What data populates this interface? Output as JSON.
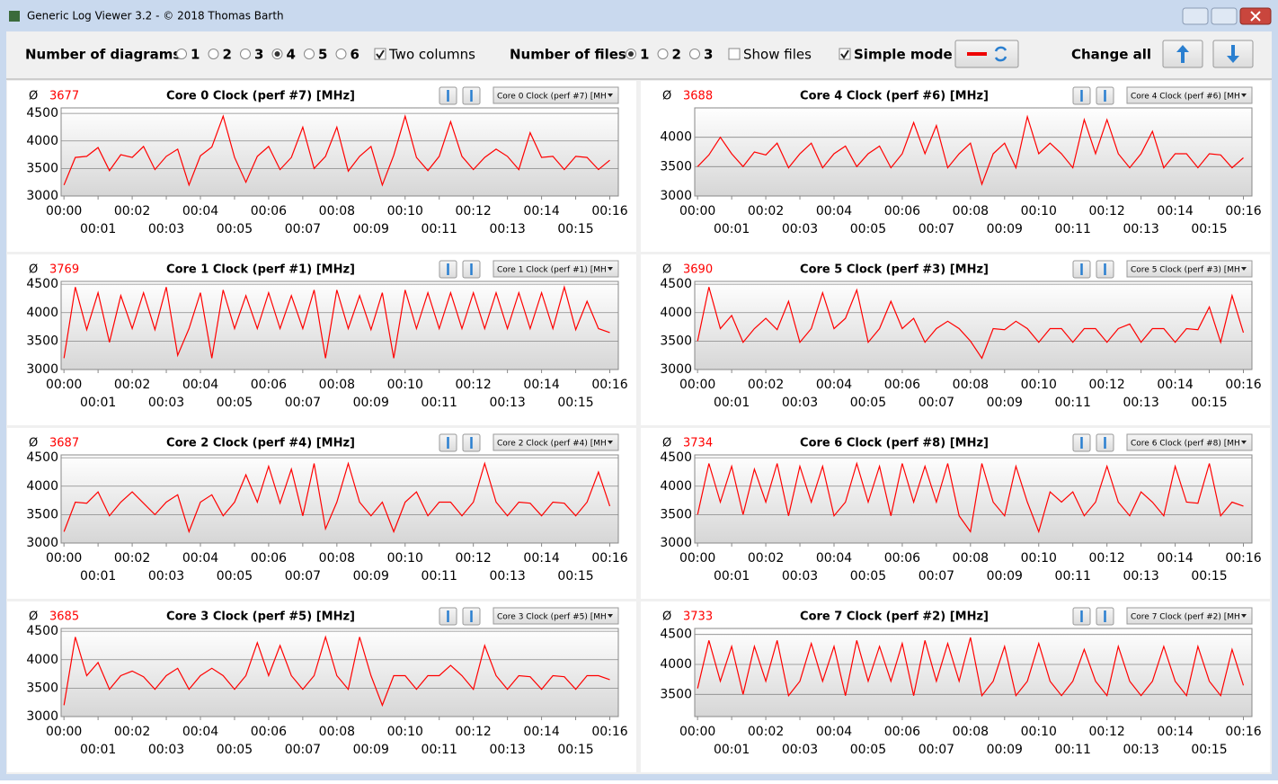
{
  "window": {
    "title": "Generic Log Viewer 3.2 - © 2018 Thomas Barth"
  },
  "toolbar": {
    "diagrams_label": "Number of diagrams",
    "diagram_options": [
      "1",
      "2",
      "3",
      "4",
      "5",
      "6"
    ],
    "two_columns": "Two columns",
    "files_label": "Number of files",
    "file_options": [
      "1",
      "2",
      "3"
    ],
    "show_files": "Show files",
    "simple_mode": "Simple mode",
    "change_all": "Change all"
  },
  "time_axis": {
    "x": [
      0,
      20,
      40,
      60,
      80,
      100,
      120,
      140,
      160,
      180,
      200,
      220,
      240,
      260,
      280,
      300,
      320,
      340,
      360,
      380,
      400,
      420,
      440,
      460,
      480,
      500,
      520,
      540,
      560,
      580,
      600,
      620,
      640,
      660,
      680,
      700,
      720,
      740,
      760,
      780,
      800,
      820,
      840,
      860,
      880,
      900,
      920,
      940,
      960
    ],
    "xlim": [
      -5,
      975
    ],
    "xticks": [
      {
        "value": 0,
        "label": "00:00"
      },
      {
        "value": 60,
        "label": "00:01"
      },
      {
        "value": 120,
        "label": "00:02"
      },
      {
        "value": 180,
        "label": "00:03"
      },
      {
        "value": 240,
        "label": "00:04"
      },
      {
        "value": 300,
        "label": "00:05"
      },
      {
        "value": 360,
        "label": "00:06"
      },
      {
        "value": 420,
        "label": "00:07"
      },
      {
        "value": 480,
        "label": "00:08"
      },
      {
        "value": 540,
        "label": "00:09"
      },
      {
        "value": 600,
        "label": "00:10"
      },
      {
        "value": 660,
        "label": "00:11"
      },
      {
        "value": 720,
        "label": "00:12"
      },
      {
        "value": 780,
        "label": "00:13"
      },
      {
        "value": 840,
        "label": "00:14"
      },
      {
        "value": 900,
        "label": "00:15"
      },
      {
        "value": 960,
        "label": "00:16"
      }
    ]
  },
  "chart_data": [
    {
      "type": "line",
      "avg_label": "Ø",
      "avg": 3677,
      "title": "Core 0 Clock (perf #7) [MHz]",
      "selector": "Core 0 Clock (perf #7) [MH",
      "color": "#ff0000",
      "ylim": [
        3000,
        4600
      ],
      "yticks": [
        3000,
        3500,
        4000,
        4500
      ],
      "values": [
        3200,
        3700,
        3720,
        3880,
        3460,
        3750,
        3700,
        3900,
        3480,
        3720,
        3850,
        3200,
        3730,
        3890,
        4450,
        3700,
        3250,
        3720,
        3900,
        3480,
        3700,
        4250,
        3500,
        3720,
        4250,
        3450,
        3720,
        3900,
        3200,
        3740,
        4450,
        3700,
        3460,
        3720,
        4350,
        3720,
        3480,
        3700,
        3850,
        3720,
        3480,
        4150,
        3700,
        3720,
        3480,
        3720,
        3700,
        3480,
        3650
      ]
    },
    {
      "type": "line",
      "avg_label": "Ø",
      "avg": 3688,
      "title": "Core 4 Clock (perf #6) [MHz]",
      "selector": "Core 4 Clock (perf #6) [MH",
      "color": "#ff0000",
      "ylim": [
        3000,
        4500
      ],
      "yticks": [
        3000,
        3500,
        4000
      ],
      "values": [
        3500,
        3700,
        4000,
        3720,
        3500,
        3750,
        3700,
        3900,
        3480,
        3720,
        3900,
        3480,
        3720,
        3850,
        3500,
        3720,
        3850,
        3480,
        3720,
        4250,
        3720,
        4200,
        3480,
        3720,
        3900,
        3200,
        3720,
        3900,
        3480,
        4350,
        3720,
        3900,
        3720,
        3480,
        4300,
        3720,
        4300,
        3720,
        3480,
        3720,
        4100,
        3480,
        3720,
        3720,
        3480,
        3720,
        3700,
        3480,
        3650
      ]
    },
    {
      "type": "line",
      "avg_label": "Ø",
      "avg": 3769,
      "title": "Core 1 Clock (perf #1) [MHz]",
      "selector": "Core 1 Clock (perf #1) [MH",
      "color": "#ff0000",
      "ylim": [
        3000,
        4550
      ],
      "yticks": [
        3000,
        3500,
        4000,
        4500
      ],
      "values": [
        3200,
        4450,
        3700,
        4350,
        3480,
        4300,
        3720,
        4350,
        3700,
        4450,
        3250,
        3720,
        4350,
        3200,
        4400,
        3720,
        4300,
        3720,
        4350,
        3720,
        4300,
        3720,
        4400,
        3200,
        4400,
        3720,
        4300,
        3700,
        4350,
        3200,
        4400,
        3720,
        4350,
        3720,
        4350,
        3720,
        4350,
        3720,
        4350,
        3720,
        4350,
        3720,
        4350,
        3720,
        4450,
        3700,
        4200,
        3720,
        3650
      ]
    },
    {
      "type": "line",
      "avg_label": "Ø",
      "avg": 3690,
      "title": "Core 5 Clock (perf #3) [MHz]",
      "selector": "Core 5 Clock (perf #3) [MH",
      "color": "#ff0000",
      "ylim": [
        3000,
        4550
      ],
      "yticks": [
        3000,
        3500,
        4000,
        4500
      ],
      "values": [
        3500,
        4450,
        3720,
        3950,
        3480,
        3720,
        3900,
        3700,
        4200,
        3480,
        3720,
        4350,
        3720,
        3900,
        4400,
        3480,
        3720,
        4200,
        3720,
        3900,
        3480,
        3720,
        3850,
        3720,
        3500,
        3200,
        3720,
        3700,
        3850,
        3720,
        3480,
        3720,
        3720,
        3480,
        3720,
        3720,
        3480,
        3720,
        3800,
        3480,
        3720,
        3720,
        3480,
        3720,
        3700,
        4100,
        3480,
        4300,
        3650
      ]
    },
    {
      "type": "line",
      "avg_label": "Ø",
      "avg": 3687,
      "title": "Core 2 Clock (perf #4) [MHz]",
      "selector": "Core 2 Clock (perf #4) [MH",
      "color": "#ff0000",
      "ylim": [
        3000,
        4550
      ],
      "yticks": [
        3000,
        3500,
        4000,
        4500
      ],
      "values": [
        3200,
        3720,
        3700,
        3900,
        3480,
        3720,
        3900,
        3700,
        3500,
        3720,
        3850,
        3200,
        3720,
        3850,
        3480,
        3720,
        4200,
        3720,
        4350,
        3700,
        4300,
        3480,
        4400,
        3250,
        3720,
        4400,
        3720,
        3480,
        3720,
        3200,
        3720,
        3900,
        3480,
        3720,
        3720,
        3480,
        3720,
        4400,
        3720,
        3480,
        3720,
        3700,
        3480,
        3720,
        3700,
        3480,
        3720,
        4250,
        3650
      ]
    },
    {
      "type": "line",
      "avg_label": "Ø",
      "avg": 3734,
      "title": "Core 6 Clock (perf #8) [MHz]",
      "selector": "Core 6 Clock (perf #8) [MH",
      "color": "#ff0000",
      "ylim": [
        3000,
        4550
      ],
      "yticks": [
        3000,
        3500,
        4000,
        4500
      ],
      "values": [
        3500,
        4400,
        3720,
        4350,
        3500,
        4300,
        3720,
        4400,
        3480,
        4350,
        3720,
        4350,
        3480,
        3720,
        4400,
        3720,
        4350,
        3480,
        4400,
        3720,
        4350,
        3720,
        4400,
        3480,
        3200,
        4400,
        3720,
        3480,
        4350,
        3720,
        3200,
        3900,
        3720,
        3900,
        3480,
        3720,
        4350,
        3720,
        3480,
        3900,
        3720,
        3480,
        4350,
        3720,
        3700,
        4400,
        3480,
        3720,
        3650
      ]
    },
    {
      "type": "line",
      "avg_label": "Ø",
      "avg": 3685,
      "title": "Core 3 Clock (perf #5) [MHz]",
      "selector": "Core 3 Clock (perf #5) [MH",
      "color": "#ff0000",
      "ylim": [
        3000,
        4550
      ],
      "yticks": [
        3000,
        3500,
        4000,
        4500
      ],
      "values": [
        3200,
        4400,
        3720,
        3950,
        3480,
        3720,
        3800,
        3700,
        3480,
        3720,
        3850,
        3480,
        3720,
        3850,
        3720,
        3480,
        3720,
        4300,
        3720,
        4250,
        3720,
        3480,
        3720,
        4400,
        3720,
        3480,
        4400,
        3720,
        3200,
        3720,
        3720,
        3480,
        3720,
        3720,
        3900,
        3720,
        3480,
        4250,
        3720,
        3480,
        3720,
        3700,
        3480,
        3720,
        3700,
        3480,
        3720,
        3720,
        3650
      ]
    },
    {
      "type": "line",
      "avg_label": "Ø",
      "avg": 3733,
      "title": "Core 7 Clock (perf #2) [MHz]",
      "selector": "Core 7 Clock (perf #2) [MH",
      "color": "#ff0000",
      "ylim": [
        3130,
        4600
      ],
      "yticks": [
        3500,
        4000,
        4500
      ],
      "values": [
        3600,
        4400,
        3720,
        4300,
        3500,
        4300,
        3720,
        4400,
        3480,
        3720,
        4350,
        3720,
        4300,
        3480,
        4400,
        3720,
        4300,
        3720,
        4350,
        3480,
        4400,
        3720,
        4350,
        3720,
        4450,
        3480,
        3720,
        4300,
        3480,
        3720,
        4350,
        3720,
        3480,
        3720,
        4250,
        3720,
        3480,
        4300,
        3720,
        3480,
        3720,
        4300,
        3720,
        3480,
        4300,
        3720,
        3480,
        4250,
        3650
      ]
    }
  ]
}
